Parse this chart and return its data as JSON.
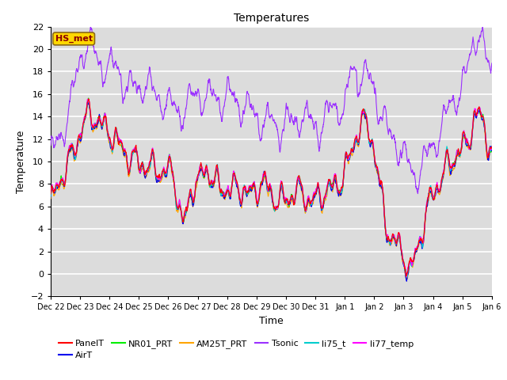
{
  "title": "Temperatures",
  "xlabel": "Time",
  "ylabel": "Temperature",
  "ylim": [
    -2,
    22
  ],
  "annotation_text": "HS_met",
  "annotation_color": "#8B0000",
  "annotation_bg": "#FFD700",
  "bg_color": "#DCDCDC",
  "grid_color": "#FFFFFF",
  "tick_labels": [
    "Dec 22",
    "Dec 23",
    "Dec 24",
    "Dec 25",
    "Dec 26",
    "Dec 27",
    "Dec 28",
    "Dec 29",
    "Dec 30",
    "Dec 31",
    "Jan 1",
    "Jan 2",
    "Jan 3",
    "Jan 4",
    "Jan 5",
    "Jan 6"
  ],
  "series": {
    "PanelT": {
      "color": "#FF0000",
      "lw": 0.8
    },
    "AirT": {
      "color": "#0000EE",
      "lw": 0.8
    },
    "NR01_PRT": {
      "color": "#00EE00",
      "lw": 0.8
    },
    "AM25T_PRT": {
      "color": "#FFA500",
      "lw": 0.8
    },
    "Tsonic": {
      "color": "#9B30FF",
      "lw": 0.8
    },
    "li75_t": {
      "color": "#00CDCD",
      "lw": 0.8
    },
    "li77_temp": {
      "color": "#FF00FF",
      "lw": 0.8
    }
  },
  "n_points": 2160,
  "days": 15,
  "figsize": [
    6.4,
    4.8
  ],
  "dpi": 100
}
